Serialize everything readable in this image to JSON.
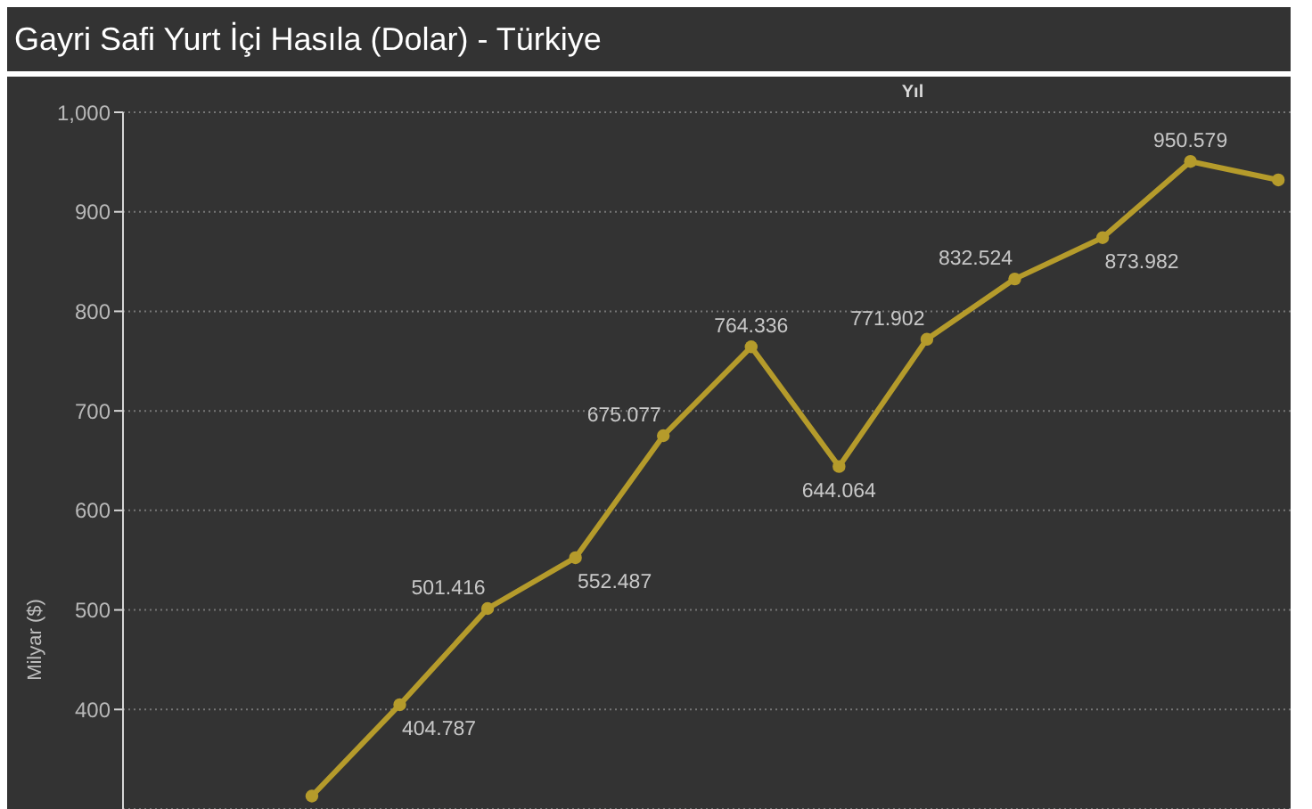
{
  "chart_data": {
    "type": "line",
    "title": "Gayri Safi Yurt İçi Hasıla (Dolar) - Türkiye",
    "xlabel": "Yıl",
    "ylabel": "Milyar ($)",
    "categories": [
      null,
      null,
      null,
      null,
      null,
      null,
      null,
      null,
      null,
      null,
      null,
      null
    ],
    "values": [
      313,
      404.787,
      501.416,
      552.487,
      675.077,
      764.336,
      644.064,
      771.902,
      832.524,
      873.982,
      950.579,
      932
    ],
    "value_labels": [
      null,
      "404.787",
      "501.416",
      "552.487",
      "675.077",
      "764.336",
      "644.064",
      "771.902",
      "832.524",
      "873.982",
      "950.579",
      null
    ],
    "color": "#b59b2b",
    "ylim": [
      300,
      1000
    ],
    "yticks": [
      400,
      500,
      600,
      700,
      800,
      900,
      {
        "value": 1000,
        "label": "1,000"
      }
    ],
    "grid": "y",
    "marker": "circle",
    "line_style": "solid"
  }
}
